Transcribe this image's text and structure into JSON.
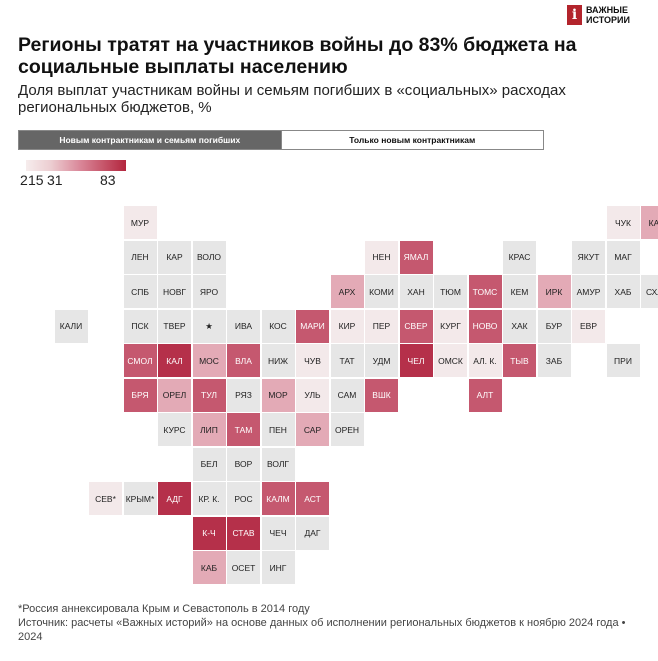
{
  "brand": {
    "mark": "i",
    "name": "ВАЖНЫЕ ИСТОРИИ"
  },
  "title": "Регионы тратят на участников войны до 83% бюджета на социальные выплаты населению",
  "subtitle": "Доля выплат участникам войны и семьям погибших в «социальных» расходах региональных бюджетов, %",
  "tabs": [
    {
      "label": "Новым контрактникам и семьям погибших",
      "active": true
    },
    {
      "label": "Только новым контрактникам",
      "active": false
    }
  ],
  "legend": {
    "labels": [
      "2",
      "15",
      "31",
      "83"
    ],
    "min": 2,
    "max": 83
  },
  "colors": {
    "none": "#e6e6e6",
    "low": "#f3e9ea",
    "mid": "#e3aab6",
    "high": "#c5586f",
    "max": "#b5304a",
    "accent": "#b3242c"
  },
  "regions": [
    {
      "label": "МУР",
      "c": 3,
      "r": 0,
      "level": "low"
    },
    {
      "label": "ЧУК",
      "c": 17,
      "r": 0,
      "level": "low"
    },
    {
      "label": "КАМ",
      "c": 18,
      "r": 0,
      "level": "mid"
    },
    {
      "label": "ЛЕН",
      "c": 3,
      "r": 1,
      "level": "none"
    },
    {
      "label": "КАР",
      "c": 4,
      "r": 1,
      "level": "none"
    },
    {
      "label": "ВОЛО",
      "c": 5,
      "r": 1,
      "level": "none"
    },
    {
      "label": "НЕН",
      "c": 10,
      "r": 1,
      "level": "low"
    },
    {
      "label": "ЯМАЛ",
      "c": 11,
      "r": 1,
      "level": "high"
    },
    {
      "label": "КРАС",
      "c": 14,
      "r": 1,
      "level": "none"
    },
    {
      "label": "ЯКУТ",
      "c": 16,
      "r": 1,
      "level": "none"
    },
    {
      "label": "МАГ",
      "c": 17,
      "r": 1,
      "level": "none"
    },
    {
      "label": "СПБ",
      "c": 3,
      "r": 2,
      "level": "none"
    },
    {
      "label": "НОВГ",
      "c": 4,
      "r": 2,
      "level": "none"
    },
    {
      "label": "ЯРО",
      "c": 5,
      "r": 2,
      "level": "none"
    },
    {
      "label": "АРХ",
      "c": 9,
      "r": 2,
      "level": "mid"
    },
    {
      "label": "КОМИ",
      "c": 10,
      "r": 2,
      "level": "none"
    },
    {
      "label": "ХАН",
      "c": 11,
      "r": 2,
      "level": "none"
    },
    {
      "label": "ТЮМ",
      "c": 12,
      "r": 2,
      "level": "none"
    },
    {
      "label": "ТОМС",
      "c": 13,
      "r": 2,
      "level": "high"
    },
    {
      "label": "КЕМ",
      "c": 14,
      "r": 2,
      "level": "none"
    },
    {
      "label": "ИРК",
      "c": 15,
      "r": 2,
      "level": "mid"
    },
    {
      "label": "АМУР",
      "c": 16,
      "r": 2,
      "level": "none"
    },
    {
      "label": "ХАБ",
      "c": 17,
      "r": 2,
      "level": "none"
    },
    {
      "label": "СХЛН",
      "c": 18,
      "r": 2,
      "level": "none"
    },
    {
      "label": "КАЛИ",
      "c": 1,
      "r": 3,
      "level": "none"
    },
    {
      "label": "ПСК",
      "c": 3,
      "r": 3,
      "level": "none"
    },
    {
      "label": "ТВЕР",
      "c": 4,
      "r": 3,
      "level": "none"
    },
    {
      "label": "★",
      "c": 5,
      "r": 3,
      "level": "none"
    },
    {
      "label": "ИВА",
      "c": 6,
      "r": 3,
      "level": "none"
    },
    {
      "label": "КОС",
      "c": 7,
      "r": 3,
      "level": "none"
    },
    {
      "label": "МАРИ",
      "c": 8,
      "r": 3,
      "level": "high"
    },
    {
      "label": "КИР",
      "c": 9,
      "r": 3,
      "level": "low"
    },
    {
      "label": "ПЕР",
      "c": 10,
      "r": 3,
      "level": "low"
    },
    {
      "label": "СВЕР",
      "c": 11,
      "r": 3,
      "level": "high"
    },
    {
      "label": "КУРГ",
      "c": 12,
      "r": 3,
      "level": "low"
    },
    {
      "label": "НОВО",
      "c": 13,
      "r": 3,
      "level": "high"
    },
    {
      "label": "ХАК",
      "c": 14,
      "r": 3,
      "level": "none"
    },
    {
      "label": "БУР",
      "c": 15,
      "r": 3,
      "level": "none"
    },
    {
      "label": "ЕВР",
      "c": 16,
      "r": 3,
      "level": "low"
    },
    {
      "label": "СМОЛ",
      "c": 3,
      "r": 4,
      "level": "high"
    },
    {
      "label": "КАЛ",
      "c": 4,
      "r": 4,
      "level": "max"
    },
    {
      "label": "МОС",
      "c": 5,
      "r": 4,
      "level": "mid"
    },
    {
      "label": "ВЛА",
      "c": 6,
      "r": 4,
      "level": "high"
    },
    {
      "label": "НИЖ",
      "c": 7,
      "r": 4,
      "level": "none"
    },
    {
      "label": "ЧУВ",
      "c": 8,
      "r": 4,
      "level": "low"
    },
    {
      "label": "ТАТ",
      "c": 9,
      "r": 4,
      "level": "none"
    },
    {
      "label": "УДМ",
      "c": 10,
      "r": 4,
      "level": "none"
    },
    {
      "label": "ЧЕЛ",
      "c": 11,
      "r": 4,
      "level": "max"
    },
    {
      "label": "ОМСК",
      "c": 12,
      "r": 4,
      "level": "low"
    },
    {
      "label": "АЛ. К.",
      "c": 13,
      "r": 4,
      "level": "low"
    },
    {
      "label": "ТЫВ",
      "c": 14,
      "r": 4,
      "level": "high"
    },
    {
      "label": "ЗАБ",
      "c": 15,
      "r": 4,
      "level": "none"
    },
    {
      "label": "ПРИ",
      "c": 17,
      "r": 4,
      "level": "none"
    },
    {
      "label": "БРЯ",
      "c": 3,
      "r": 5,
      "level": "high"
    },
    {
      "label": "ОРЕЛ",
      "c": 4,
      "r": 5,
      "level": "mid"
    },
    {
      "label": "ТУЛ",
      "c": 5,
      "r": 5,
      "level": "high"
    },
    {
      "label": "РЯЗ",
      "c": 6,
      "r": 5,
      "level": "none"
    },
    {
      "label": "МОР",
      "c": 7,
      "r": 5,
      "level": "mid"
    },
    {
      "label": "УЛЬ",
      "c": 8,
      "r": 5,
      "level": "low"
    },
    {
      "label": "САМ",
      "c": 9,
      "r": 5,
      "level": "none"
    },
    {
      "label": "ВШК",
      "c": 10,
      "r": 5,
      "level": "high"
    },
    {
      "label": "АЛТ",
      "c": 13,
      "r": 5,
      "level": "high"
    },
    {
      "label": "КУРС",
      "c": 4,
      "r": 6,
      "level": "none"
    },
    {
      "label": "ЛИП",
      "c": 5,
      "r": 6,
      "level": "mid"
    },
    {
      "label": "ТАМ",
      "c": 6,
      "r": 6,
      "level": "high"
    },
    {
      "label": "ПЕН",
      "c": 7,
      "r": 6,
      "level": "none"
    },
    {
      "label": "САР",
      "c": 8,
      "r": 6,
      "level": "mid"
    },
    {
      "label": "ОРЕН",
      "c": 9,
      "r": 6,
      "level": "none"
    },
    {
      "label": "БЕЛ",
      "c": 5,
      "r": 7,
      "level": "none"
    },
    {
      "label": "ВОР",
      "c": 6,
      "r": 7,
      "level": "none"
    },
    {
      "label": "ВОЛГ",
      "c": 7,
      "r": 7,
      "level": "none"
    },
    {
      "label": "СЕВ*",
      "c": 2,
      "r": 8,
      "level": "low"
    },
    {
      "label": "КРЫМ*",
      "c": 3,
      "r": 8,
      "level": "none"
    },
    {
      "label": "АДГ",
      "c": 4,
      "r": 8,
      "level": "max"
    },
    {
      "label": "КР. К.",
      "c": 5,
      "r": 8,
      "level": "none"
    },
    {
      "label": "РОС",
      "c": 6,
      "r": 8,
      "level": "none"
    },
    {
      "label": "КАЛМ",
      "c": 7,
      "r": 8,
      "level": "high"
    },
    {
      "label": "АСТ",
      "c": 8,
      "r": 8,
      "level": "high"
    },
    {
      "label": "К-Ч",
      "c": 5,
      "r": 9,
      "level": "max"
    },
    {
      "label": "СТАВ",
      "c": 6,
      "r": 9,
      "level": "max"
    },
    {
      "label": "ЧЕЧ",
      "c": 7,
      "r": 9,
      "level": "none"
    },
    {
      "label": "ДАГ",
      "c": 8,
      "r": 9,
      "level": "none"
    },
    {
      "label": "КАБ",
      "c": 5,
      "r": 10,
      "level": "mid"
    },
    {
      "label": "ОСЕТ",
      "c": 6,
      "r": 10,
      "level": "none"
    },
    {
      "label": "ИНГ",
      "c": 7,
      "r": 10,
      "level": "none"
    }
  ],
  "footnote": "*Россия аннексировала Крым и Севастополь в 2014 году",
  "source": "Источник: расчеты «Важных историй» на основе данных об исполнении региональных бюджетов к ноябрю 2024 года • 2024"
}
